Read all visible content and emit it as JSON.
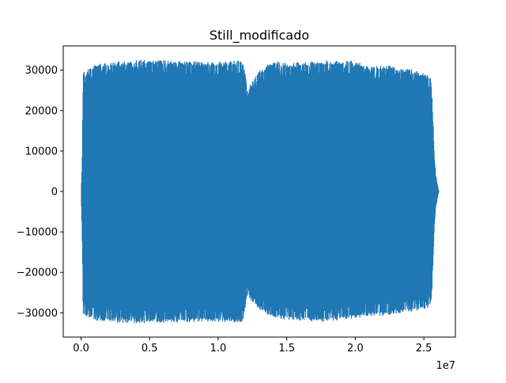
{
  "chart_data": {
    "type": "line",
    "title": "Still_modificado",
    "xlabel": "",
    "ylabel": "",
    "x_offset_label": "1e7",
    "xlim": [
      -1300000,
      27300000
    ],
    "ylim": [
      -36000,
      36000
    ],
    "x_ticks": [
      {
        "value": 0,
        "label": "0.0"
      },
      {
        "value": 5000000,
        "label": "0.5"
      },
      {
        "value": 10000000,
        "label": "1.0"
      },
      {
        "value": 15000000,
        "label": "1.5"
      },
      {
        "value": 20000000,
        "label": "2.0"
      },
      {
        "value": 25000000,
        "label": "2.5"
      }
    ],
    "y_ticks": [
      {
        "value": -30000,
        "label": "−30000"
      },
      {
        "value": -20000,
        "label": "−20000"
      },
      {
        "value": -10000,
        "label": "−10000"
      },
      {
        "value": 0,
        "label": "0"
      },
      {
        "value": 10000,
        "label": "10000"
      },
      {
        "value": 20000,
        "label": "20000"
      },
      {
        "value": 30000,
        "label": "30000"
      }
    ],
    "grid": false,
    "line_color": "#1f77b4",
    "series": [
      {
        "name": "",
        "envelope_x": [
          0,
          80000,
          150000,
          300000,
          500000,
          1000000,
          1500000,
          2000000,
          3000000,
          4000000,
          5000000,
          6000000,
          7000000,
          8000000,
          9000000,
          10000000,
          11000000,
          11800000,
          12000000,
          12100000,
          13000000,
          14000000,
          15000000,
          16000000,
          17000000,
          18000000,
          19000000,
          20000000,
          21000000,
          22000000,
          23000000,
          24000000,
          25000000,
          25500000,
          25600000,
          25700000,
          25800000,
          25900000,
          26000000,
          26100000
        ],
        "envelope_max": [
          0,
          7500,
          30500,
          30000,
          30800,
          31500,
          32000,
          32300,
          32500,
          32700,
          32800,
          32800,
          32500,
          32400,
          32300,
          32300,
          32500,
          32600,
          28500,
          25500,
          30000,
          32500,
          32000,
          32200,
          32400,
          32700,
          32500,
          32600,
          31000,
          31500,
          31000,
          30500,
          29500,
          28500,
          24000,
          15000,
          7000,
          3500,
          1500,
          0
        ],
        "envelope_min": [
          0,
          -11500,
          -30500,
          -31000,
          -31500,
          -32000,
          -32300,
          -32500,
          -32700,
          -32800,
          -32800,
          -32800,
          -32700,
          -32500,
          -32400,
          -32500,
          -32600,
          -32800,
          -28000,
          -26000,
          -29500,
          -31500,
          -32000,
          -32200,
          -32400,
          -32500,
          -32000,
          -31500,
          -31000,
          -31000,
          -30500,
          -30000,
          -29500,
          -28500,
          -24000,
          -15000,
          -7000,
          -3500,
          -1500,
          0
        ]
      }
    ]
  }
}
